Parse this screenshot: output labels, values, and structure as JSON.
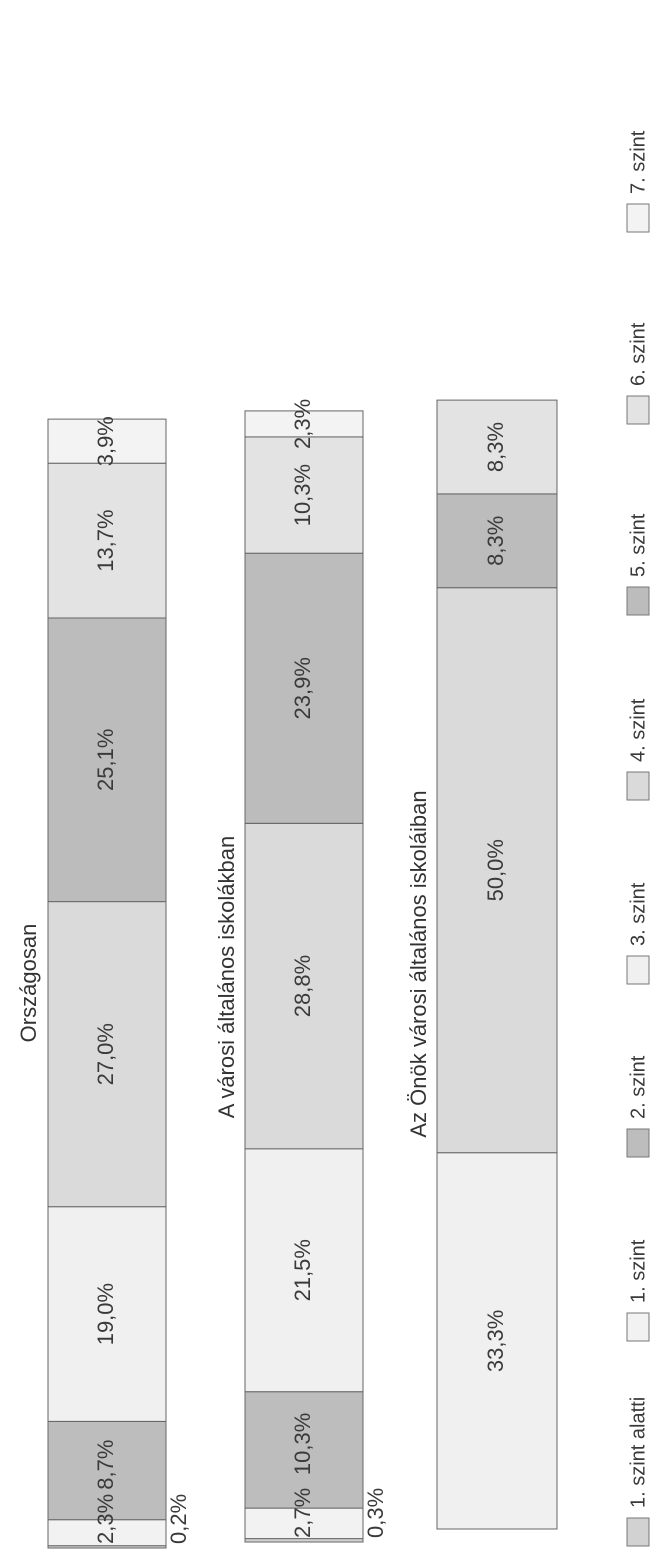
{
  "chart_data": {
    "type": "bar",
    "stacked": true,
    "orientation": "horizontal",
    "unit": "%",
    "legend_position": "bottom",
    "grid": false,
    "categories": [
      "1. szint alatti",
      "1. szint",
      "2. szint",
      "3. szint",
      "4. szint",
      "5. szint",
      "6. szint",
      "7. szint"
    ],
    "category_colors": [
      "#d2d2d2",
      "#f2f2f2",
      "#bdbdbd",
      "#f0f0f0",
      "#dadada",
      "#bcbcbc",
      "#e3e3e3",
      "#f3f3f3"
    ],
    "bars": [
      {
        "title": "Országosan",
        "values": [
          0.2,
          2.3,
          8.7,
          19.0,
          27.0,
          25.1,
          13.7,
          3.9
        ],
        "labels": [
          "0,2%",
          "2,3%",
          "8,7%",
          "19,0%",
          "27,0%",
          "25,1%",
          "13,7%",
          "3,9%"
        ]
      },
      {
        "title": "A városi általános iskolákban",
        "values": [
          0.3,
          2.7,
          10.3,
          21.5,
          28.8,
          23.9,
          10.3,
          2.3
        ],
        "labels": [
          "0,3%",
          "2,7%",
          "10,3%",
          "21,5%",
          "28,8%",
          "23,9%",
          "10,3%",
          "2,3%"
        ]
      },
      {
        "title": "Az Önök városi általános iskoláiban",
        "values": [
          0.0,
          0.0,
          0.0,
          33.3,
          50.0,
          8.3,
          8.3,
          0.0
        ],
        "labels": [
          "",
          "",
          "",
          "33,3%",
          "50,0%",
          "8,3%",
          "8,3%",
          ""
        ]
      }
    ]
  }
}
